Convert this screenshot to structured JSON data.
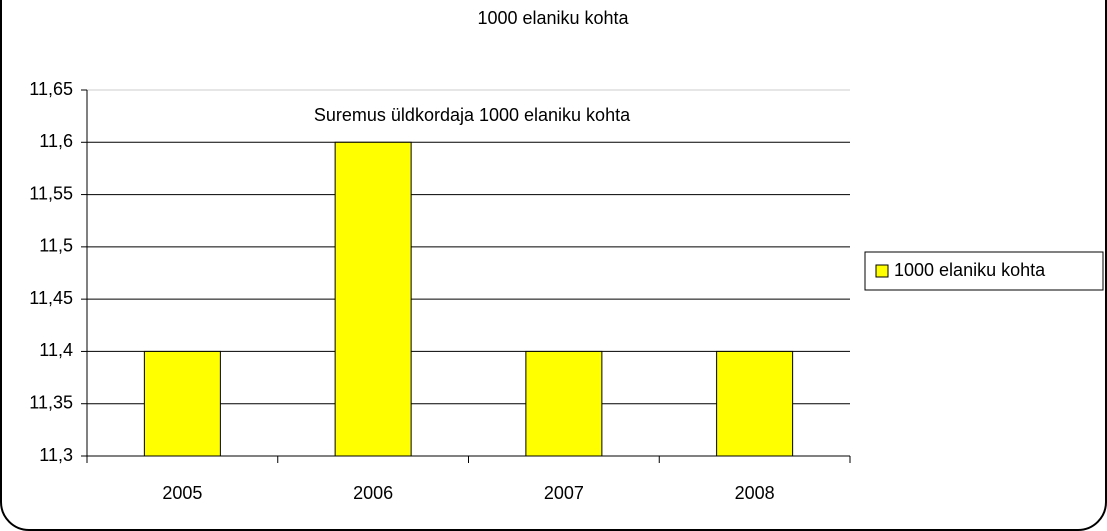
{
  "chart_data": {
    "type": "bar",
    "title": "1000 elaniku kohta",
    "annotation": "Suremus üldkordaja 1000 elaniku kohta",
    "categories": [
      "2005",
      "2006",
      "2007",
      "2008"
    ],
    "series": [
      {
        "name": "1000 elaniku kohta",
        "color": "#ffff00",
        "values": [
          11.4,
          11.6,
          11.4,
          11.4
        ]
      }
    ],
    "ylim": [
      11.3,
      11.65
    ],
    "yticks": [
      {
        "value": 11.3,
        "label": "11,3"
      },
      {
        "value": 11.35,
        "label": "11,35"
      },
      {
        "value": 11.4,
        "label": "11,4"
      },
      {
        "value": 11.45,
        "label": "11,45"
      },
      {
        "value": 11.5,
        "label": "11,5"
      },
      {
        "value": 11.55,
        "label": "11,55"
      },
      {
        "value": 11.6,
        "label": "11,6"
      },
      {
        "value": 11.65,
        "label": "11,65"
      }
    ],
    "grid": true,
    "legend": "right"
  }
}
